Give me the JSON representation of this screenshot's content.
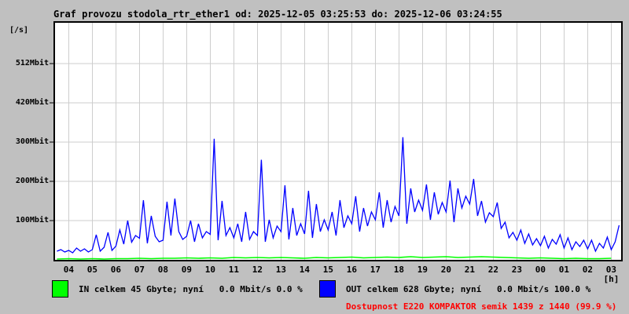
{
  "title": "Graf provozu stodola_rtr_ether1 od: 2025-12-05 03:25:53 do: 2025-12-06 03:24:55",
  "colors": {
    "background": "#c0c0c0",
    "plot_background": "#ffffff",
    "grid": "#cdcdcd",
    "axis": "#000000",
    "in_series": "#00ff00",
    "out_series": "#0000ff",
    "availability_text": "#ff0000"
  },
  "y_axis": {
    "unit_label": "[/s]",
    "ticks": [
      {
        "label": "512Mbit",
        "value": 512
      },
      {
        "label": "420Mbit",
        "value": 420
      },
      {
        "label": "300Mbit",
        "value": 300
      },
      {
        "label": "200Mbit",
        "value": 200
      },
      {
        "label": "100Mbit",
        "value": 100
      }
    ]
  },
  "x_axis": {
    "unit_label": "[h]",
    "hours": [
      "04",
      "05",
      "06",
      "07",
      "08",
      "09",
      "10",
      "11",
      "12",
      "13",
      "14",
      "15",
      "16",
      "17",
      "18",
      "19",
      "20",
      "21",
      "22",
      "23",
      "00",
      "01",
      "02",
      "03"
    ]
  },
  "legend": {
    "in": {
      "label": "IN celkem 45 Gbyte; nyní   0.0 Mbit/s 0.0 %",
      "color": "#00ff00"
    },
    "out": {
      "label": "OUT celkem 628 Gbyte; nyní   0.0 Mbit/s 100.0 %",
      "color": "#0000ff"
    }
  },
  "availability": {
    "text": "Dostupnost E220 KOMPAKTOR semik 1439 z 1440 (99.9 %)",
    "color": "#ff0000"
  },
  "chart_data": {
    "type": "line",
    "title": "Graf provozu stodola_rtr_ether1",
    "time_from": "2025-12-05 03:25:53",
    "time_to": "2025-12-06 03:24:55",
    "xlabel": "[h]",
    "ylabel": "[/s] (Mbit)",
    "x_range_hours": [
      3.42,
      27.42
    ],
    "x_tick_hours": [
      4,
      5,
      6,
      7,
      8,
      9,
      10,
      11,
      12,
      13,
      14,
      15,
      16,
      17,
      18,
      19,
      20,
      21,
      22,
      23,
      24,
      25,
      26,
      27
    ],
    "y_tick_values_mbit": [
      100,
      200,
      300,
      420,
      512
    ],
    "grid": true,
    "legend_position": "bottom",
    "series": [
      {
        "name": "OUT",
        "color": "#0000ff",
        "total": "628 Gbyte",
        "now": "0.0 Mbit/s 100.0 %",
        "start_hour": 3.5,
        "step_hours": 0.166667,
        "values_mbit": [
          22,
          26,
          20,
          24,
          18,
          30,
          22,
          28,
          20,
          26,
          64,
          22,
          32,
          70,
          24,
          35,
          76,
          40,
          100,
          45,
          62,
          55,
          152,
          42,
          112,
          60,
          46,
          50,
          148,
          62,
          156,
          72,
          52,
          60,
          100,
          46,
          92,
          56,
          72,
          65,
          310,
          50,
          150,
          62,
          82,
          56,
          92,
          46,
          122,
          52,
          72,
          62,
          255,
          46,
          102,
          56,
          86,
          72,
          190,
          52,
          132,
          62,
          92,
          66,
          176,
          56,
          142,
          72,
          102,
          76,
          122,
          62,
          152,
          82,
          112,
          92,
          162,
          72,
          132,
          86,
          122,
          102,
          172,
          82,
          152,
          96,
          136,
          112,
          315,
          92,
          182,
          122,
          152,
          126,
          192,
          102,
          172,
          116,
          146,
          122,
          202,
          96,
          182,
          132,
          162,
          142,
          206,
          112,
          150,
          96,
          120,
          110,
          146,
          80,
          96,
          56,
          70,
          50,
          76,
          42,
          66,
          38,
          54,
          36,
          60,
          30,
          52,
          40,
          64,
          30,
          56,
          26,
          46,
          34,
          50,
          28,
          50,
          22,
          42,
          30,
          58,
          26,
          46,
          88
        ]
      },
      {
        "name": "IN",
        "color": "#00ff00",
        "total": "45 Gbyte",
        "now": "0.0 Mbit/s 0.0 %",
        "start_hour": 3.5,
        "step_hours": 0.5,
        "values_mbit": [
          2,
          3,
          2,
          3,
          2,
          3,
          3,
          4,
          3,
          4,
          4,
          5,
          4,
          5,
          4,
          6,
          5,
          6,
          5,
          6,
          5,
          4,
          6,
          5,
          6,
          7,
          5,
          6,
          7,
          6,
          8,
          6,
          7,
          8,
          6,
          7,
          8,
          7,
          6,
          5,
          4,
          5,
          4,
          3,
          4,
          3,
          3,
          4
        ]
      }
    ]
  }
}
